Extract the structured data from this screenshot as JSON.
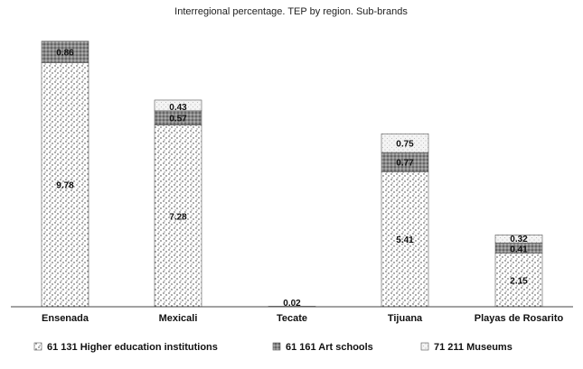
{
  "chart_data": {
    "type": "bar",
    "stacked": true,
    "title": "Interregional percentage. TEP by region. Sub-brands",
    "xlabel": "",
    "ylabel": "",
    "categories": [
      "Ensenada",
      "Mexicali",
      "Tecate",
      "Tijuana",
      "Playas de Rosarito"
    ],
    "series": [
      {
        "name": "61 131 Higher education institutions",
        "pattern": "white-stipple",
        "values": [
          9.78,
          7.28,
          0,
          5.41,
          2.15
        ],
        "labels": [
          "9.78",
          "7.28",
          "",
          "5.41",
          "2.15"
        ]
      },
      {
        "name": "61 161 Art schools",
        "pattern": "gray-stipple",
        "values": [
          0.86,
          0.57,
          0.02,
          0.77,
          0.41
        ],
        "labels": [
          "0.86",
          "0.57",
          "0.02",
          "0.77",
          "0.41"
        ]
      },
      {
        "name": "71 211 Museums",
        "pattern": "light-stipple",
        "values": [
          0,
          0.43,
          0,
          0.75,
          0.32
        ],
        "labels": [
          "",
          "0.43",
          "",
          "0.75",
          "0.32"
        ]
      }
    ],
    "ylim": [
      0,
      10.7
    ],
    "grid": false,
    "legend_position": "bottom"
  }
}
